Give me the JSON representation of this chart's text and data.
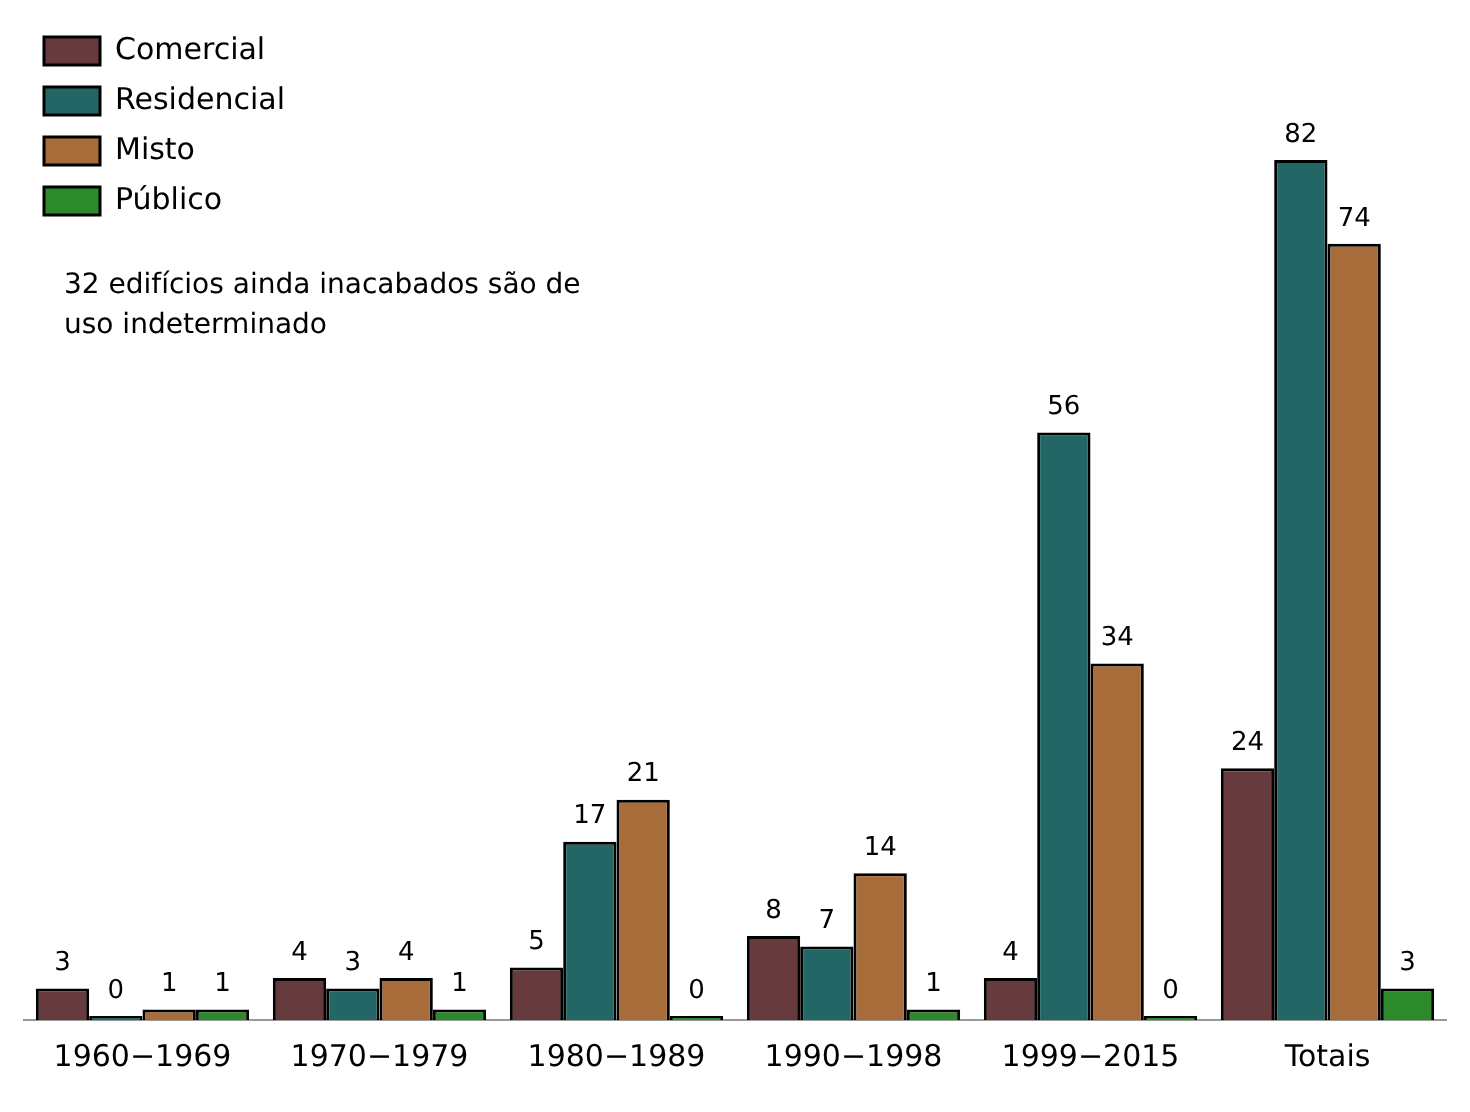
{
  "chart_data": {
    "type": "bar",
    "categories": [
      "1960−1969",
      "1970−1979",
      "1980−1989",
      "1990−1998",
      "1999−2015",
      "Totais"
    ],
    "series": [
      {
        "name": "Comercial",
        "color": "#673a3e",
        "values": [
          3,
          4,
          5,
          8,
          4,
          24
        ]
      },
      {
        "name": "Residencial",
        "color": "#226766",
        "values": [
          0,
          3,
          17,
          7,
          56,
          82
        ]
      },
      {
        "name": "Misto",
        "color": "#a86c3a",
        "values": [
          1,
          4,
          21,
          14,
          34,
          74
        ]
      },
      {
        "name": "Público",
        "color": "#2c8a2c",
        "values": [
          1,
          1,
          0,
          1,
          0,
          3
        ]
      }
    ],
    "data_labels": true,
    "legend": "top left",
    "grid": false,
    "annotations": [
      "32 edifícios ainda inacabados são de uso indeterminado"
    ]
  }
}
